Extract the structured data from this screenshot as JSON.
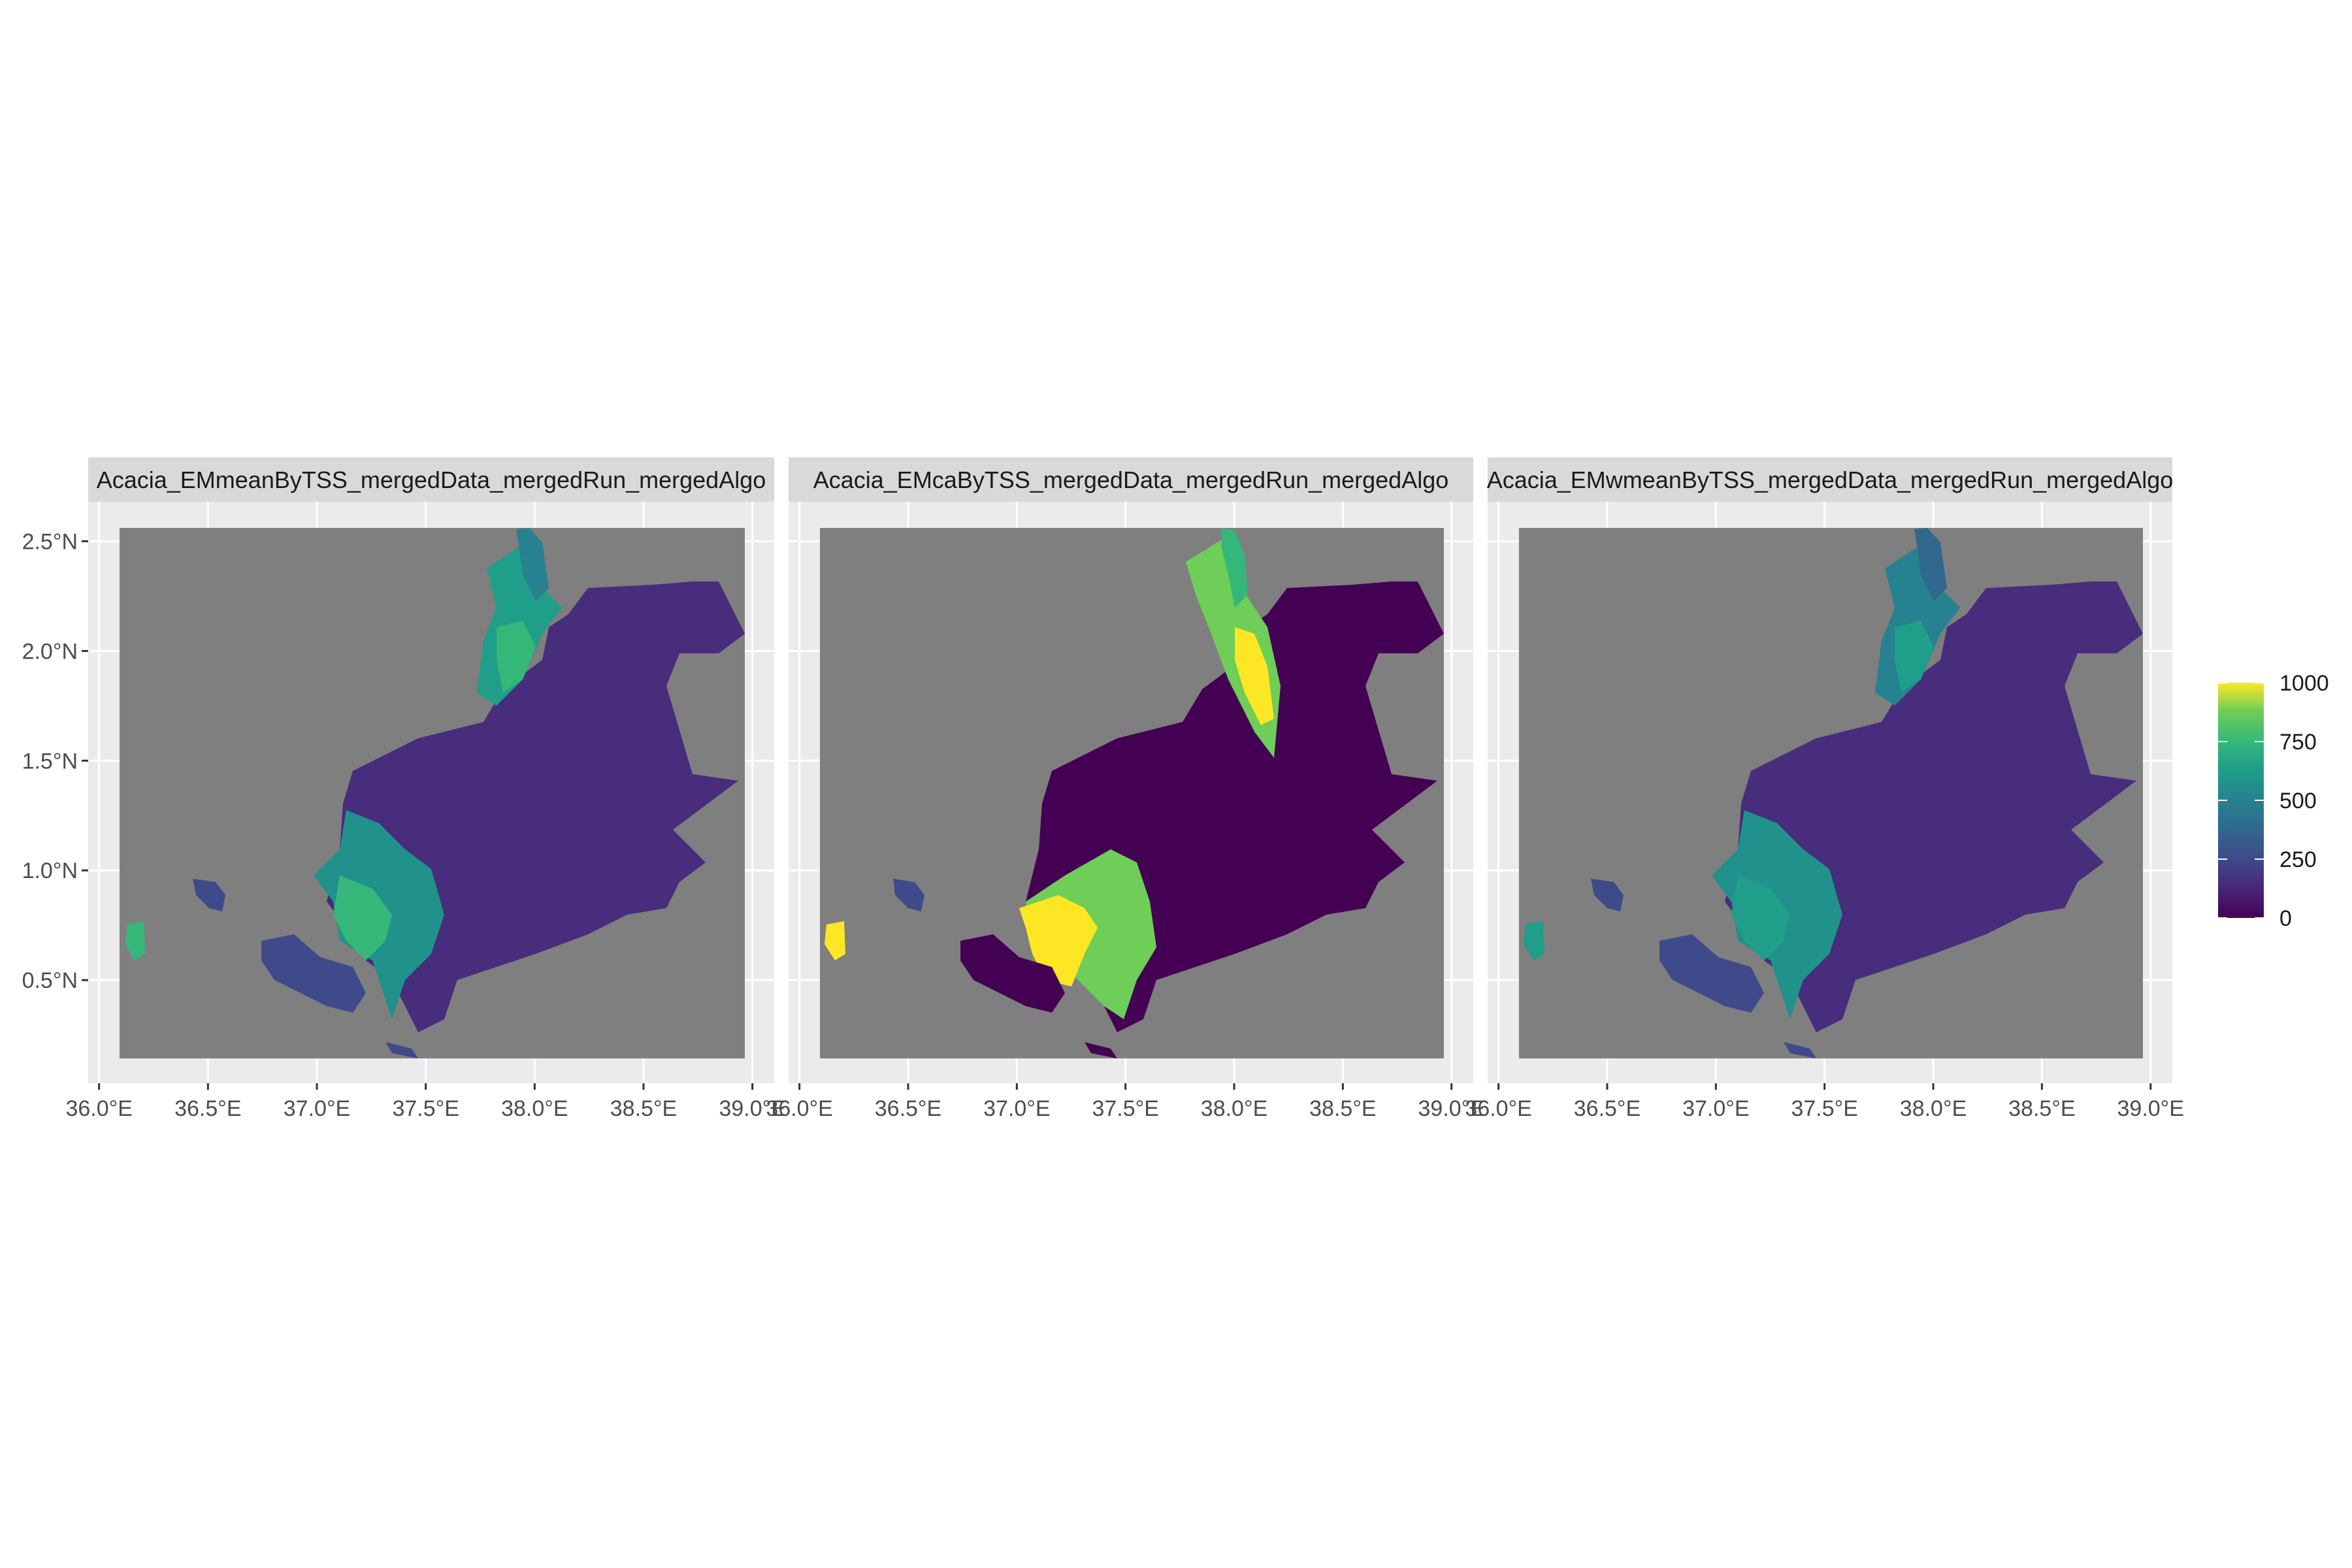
{
  "chart_data": {
    "type": "raster-map",
    "facets": [
      {
        "title": "Acacia_EMmeanByTSS_mergedData_mergedRun_mergedAlgo",
        "id": "mean"
      },
      {
        "title": "Acacia_EMcaByTSS_mergedData_mergedRun_mergedAlgo",
        "id": "ca"
      },
      {
        "title": "Acacia_EMwmeanByTSS_mergedData_mergedRun_mergedAlgo",
        "id": "wmean"
      }
    ],
    "x_ticks": [
      "36.0°E",
      "36.5°E",
      "37.0°E",
      "37.5°E",
      "38.0°E",
      "38.5°E",
      "39.0°E"
    ],
    "x_tick_values": [
      36.0,
      36.5,
      37.0,
      37.5,
      38.0,
      38.5,
      39.0
    ],
    "y_ticks": [
      "2.5°N",
      "2.0°N",
      "1.5°N",
      "1.0°N",
      "0.5°N"
    ],
    "y_tick_values": [
      2.5,
      2.0,
      1.5,
      1.0,
      0.5
    ],
    "xlim": [
      35.95,
      39.1
    ],
    "ylim": [
      0.03,
      2.68
    ],
    "raster_extent": {
      "lon": [
        36.08,
        38.97
      ],
      "lat": [
        0.12,
        2.59
      ]
    },
    "background_fill": "#7f7f7f",
    "colorscale": "viridis",
    "legend": {
      "position": "right",
      "labels": [
        "1000",
        "750",
        "500",
        "250",
        "0"
      ],
      "values": [
        1000,
        750,
        500,
        250,
        0
      ],
      "range": [
        0,
        1000
      ]
    }
  }
}
